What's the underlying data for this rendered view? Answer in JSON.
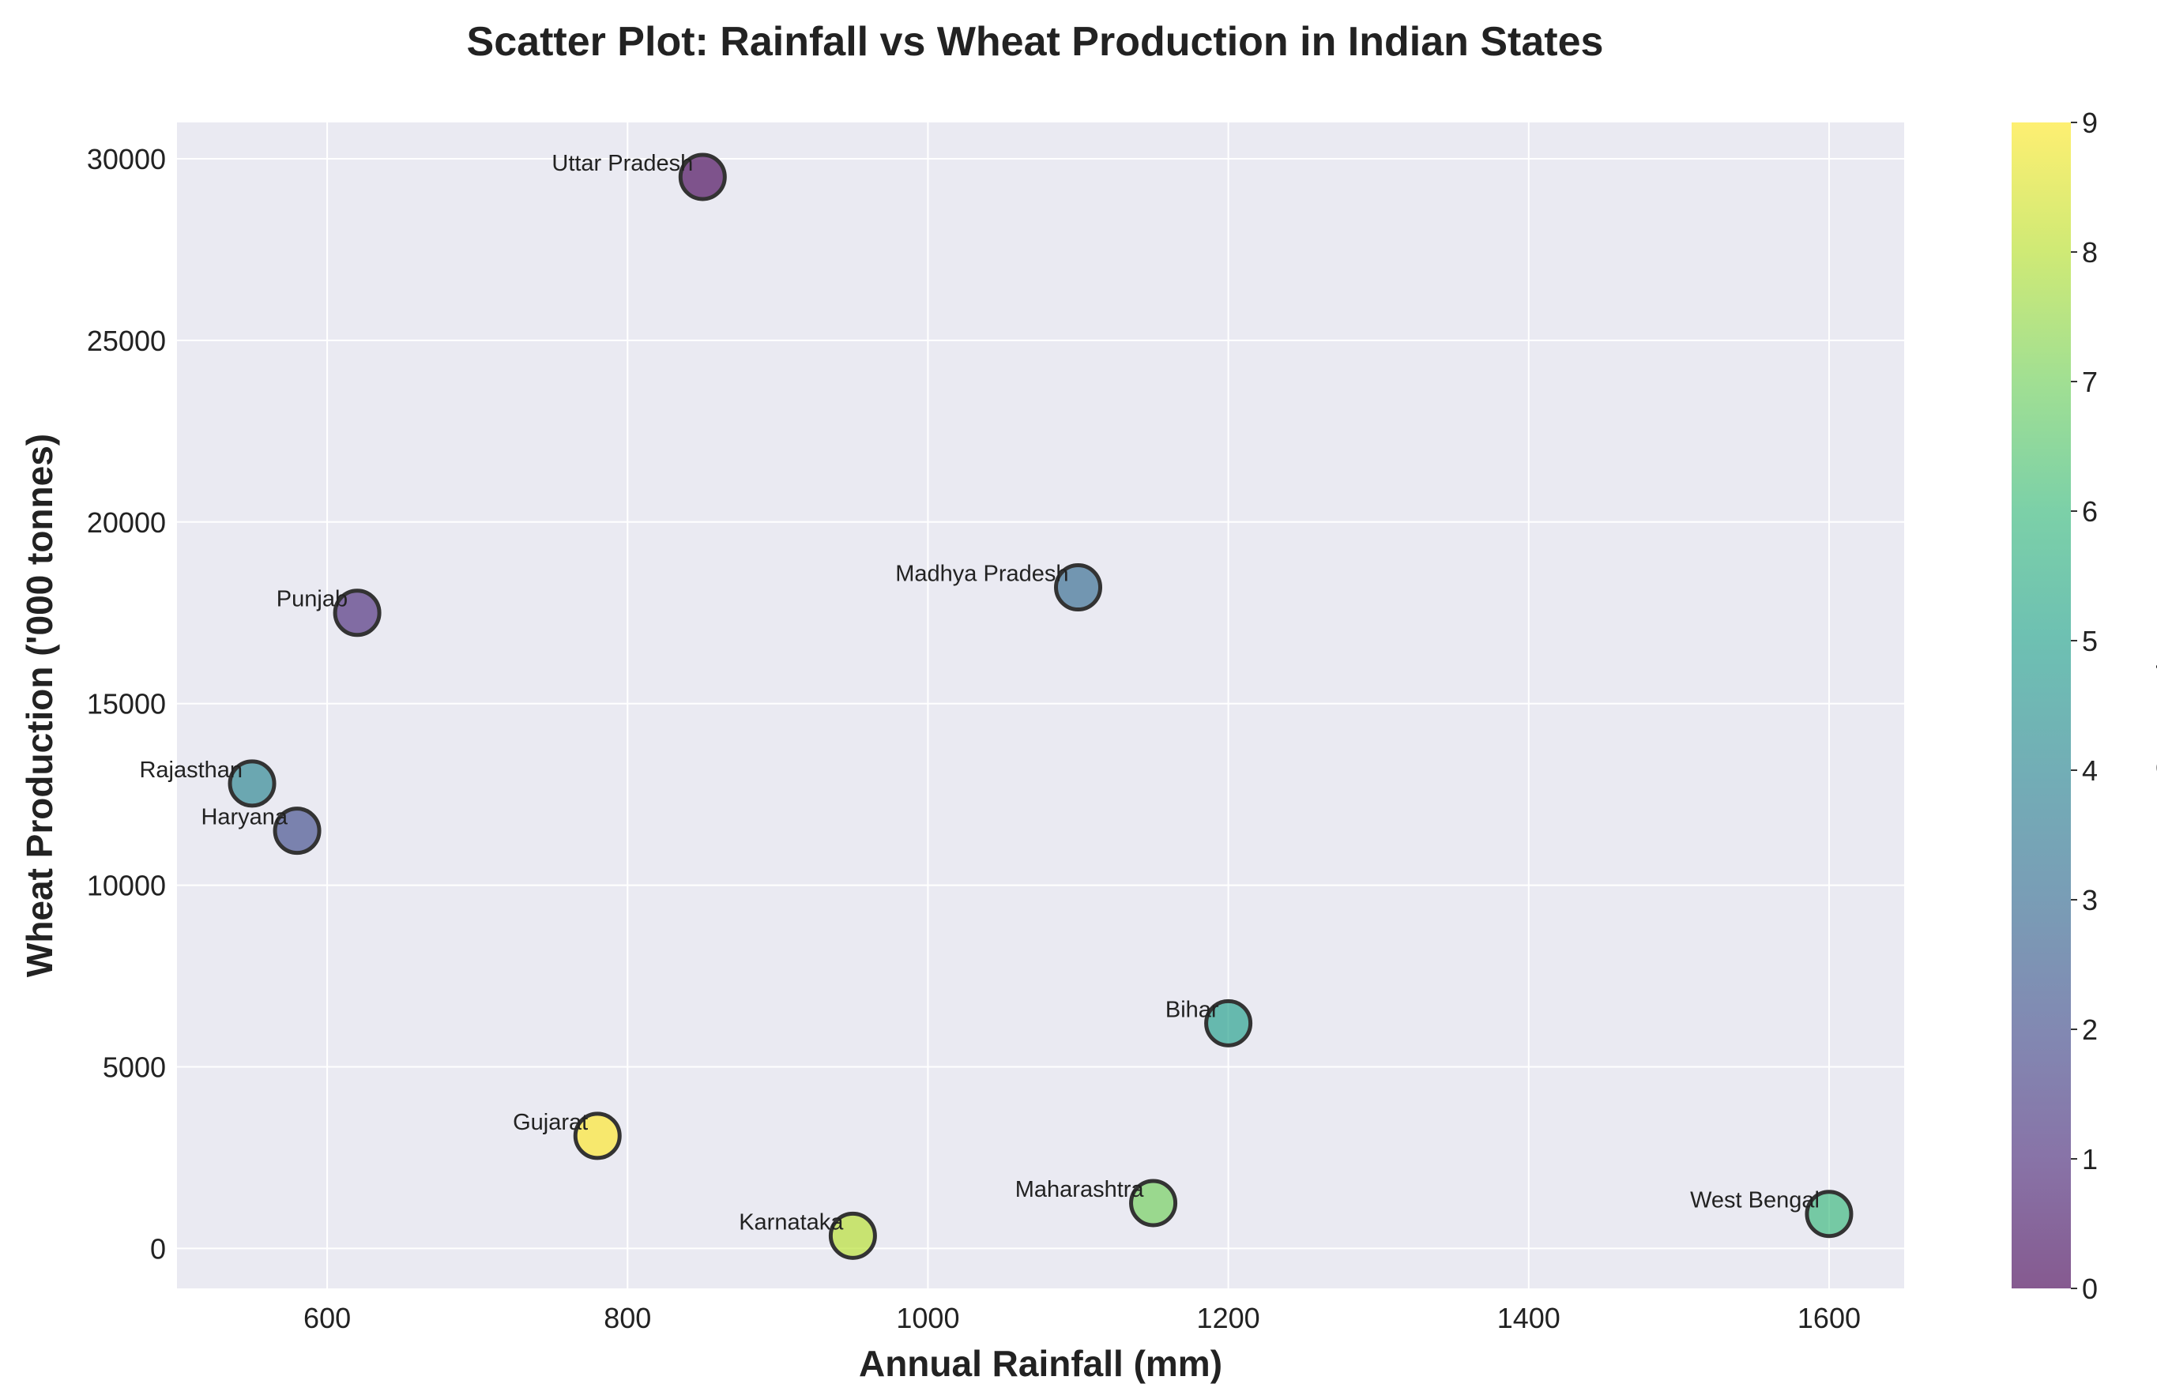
{
  "chart_data": {
    "type": "scatter",
    "title": "Scatter Plot: Rainfall vs Wheat Production in Indian States",
    "xlabel": "Annual Rainfall (mm)",
    "ylabel": "Wheat Production ('000 tonnes)",
    "xlim": [
      500,
      1650
    ],
    "ylim": [
      -1100,
      31000
    ],
    "xticks": [
      600,
      800,
      1000,
      1200,
      1400,
      1600
    ],
    "yticks": [
      0,
      5000,
      10000,
      15000,
      20000,
      25000,
      30000
    ],
    "grid": true,
    "colorbar": {
      "label": "State Index",
      "range": [
        0,
        9
      ],
      "ticks": [
        0,
        1,
        2,
        3,
        4,
        5,
        6,
        7,
        8,
        9
      ],
      "colormap": "viridis"
    },
    "points": [
      {
        "label": "Uttar Pradesh",
        "x": 850,
        "y": 29500,
        "index": 0
      },
      {
        "label": "Punjab",
        "x": 620,
        "y": 17500,
        "index": 1
      },
      {
        "label": "Haryana",
        "x": 580,
        "y": 11500,
        "index": 2
      },
      {
        "label": "Madhya Pradesh",
        "x": 1100,
        "y": 18200,
        "index": 3
      },
      {
        "label": "Rajasthan",
        "x": 550,
        "y": 12800,
        "index": 4
      },
      {
        "label": "Bihar",
        "x": 1200,
        "y": 6200,
        "index": 5
      },
      {
        "label": "West Bengal",
        "x": 1600,
        "y": 950,
        "index": 6
      },
      {
        "label": "Maharashtra",
        "x": 1150,
        "y": 1250,
        "index": 7
      },
      {
        "label": "Karnataka",
        "x": 950,
        "y": 350,
        "index": 8
      },
      {
        "label": "Gujarat",
        "x": 780,
        "y": 3100,
        "index": 9
      }
    ]
  },
  "colors": {
    "plot_background": "#eaeaf2",
    "grid": "#ffffff",
    "marker_edge": "#333333",
    "viridis_stops": [
      "#440154",
      "#482878",
      "#3e4989",
      "#31688e",
      "#26828e",
      "#1f9e89",
      "#35b779",
      "#6ece58",
      "#b5de2b",
      "#fde725"
    ]
  }
}
